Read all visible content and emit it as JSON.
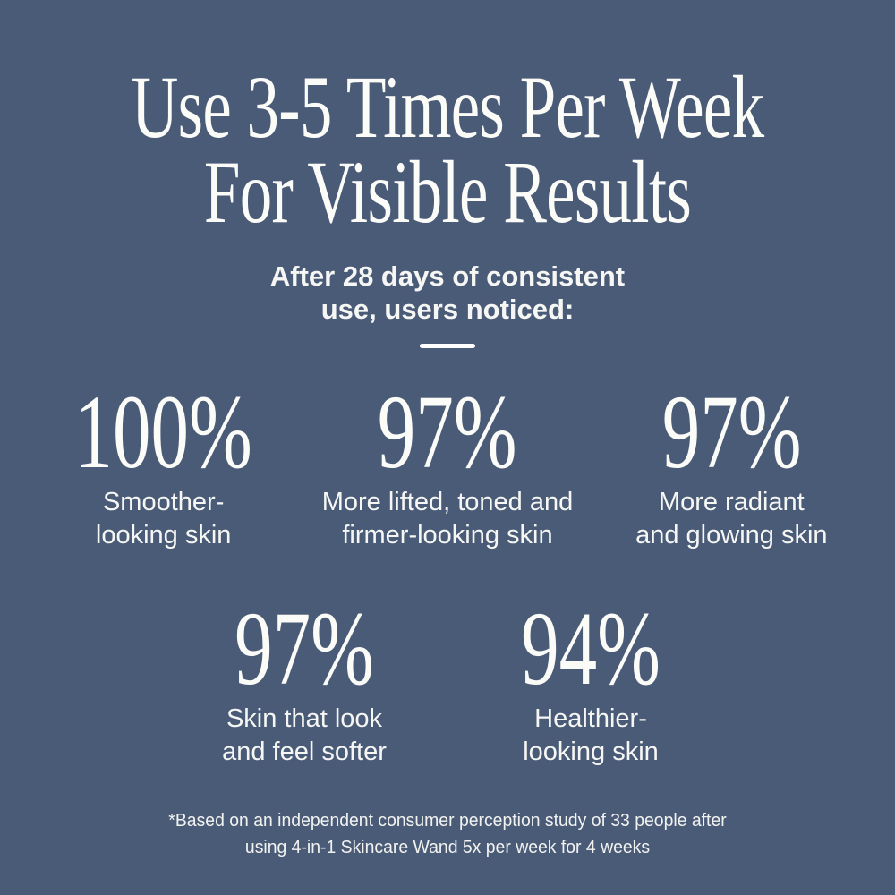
{
  "colors": {
    "background": "#4a5b78",
    "text": "#fafaf6"
  },
  "heading": {
    "line1": "Use 3-5 Times Per Week",
    "line2": "For Visible Results"
  },
  "subheading": {
    "line1": "After 28 days of consistent",
    "line2": "use, users noticed:"
  },
  "stats": {
    "row1": [
      {
        "value": "100%",
        "label_line1": "Smoother-",
        "label_line2": "looking skin"
      },
      {
        "value": "97%",
        "label_line1": "More lifted, toned and",
        "label_line2": "firmer-looking skin"
      },
      {
        "value": "97%",
        "label_line1": "More radiant",
        "label_line2": "and glowing skin"
      }
    ],
    "row2": [
      {
        "value": "97%",
        "label_line1": "Skin that look",
        "label_line2": "and feel softer"
      },
      {
        "value": "94%",
        "label_line1": "Healthier-",
        "label_line2": "looking skin"
      }
    ]
  },
  "footnote": {
    "line1": "*Based on an independent consumer perception study of 33 people after",
    "line2": "using 4-in-1 Skincare Wand 5x per week for 4 weeks"
  }
}
